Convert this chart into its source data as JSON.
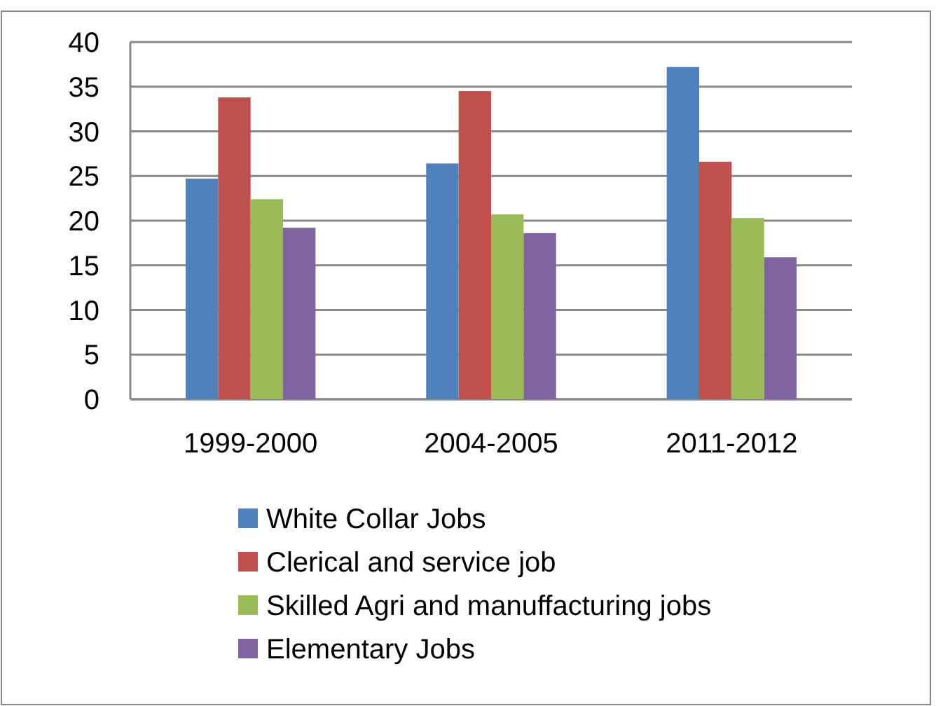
{
  "chart_data": {
    "type": "bar",
    "categories": [
      "1999-2000",
      "2004-2005",
      "2011-2012"
    ],
    "series": [
      {
        "name": "White Collar Jobs",
        "color": "#4f81bd",
        "values": [
          24.7,
          26.4,
          37.2
        ]
      },
      {
        "name": "Clerical and service job",
        "color": "#c0504d",
        "values": [
          33.8,
          34.5,
          26.6
        ]
      },
      {
        "name": "Skilled Agri and manuffacturing jobs",
        "color": "#9bbb59",
        "values": [
          22.4,
          20.7,
          20.3
        ]
      },
      {
        "name": "Elementary Jobs",
        "color": "#8064a2",
        "values": [
          19.2,
          18.6,
          15.9
        ]
      }
    ],
    "ylim": [
      0,
      40
    ],
    "yticks": [
      0,
      5,
      10,
      15,
      20,
      25,
      30,
      35,
      40
    ],
    "grid": "y",
    "legend": "bottom"
  }
}
